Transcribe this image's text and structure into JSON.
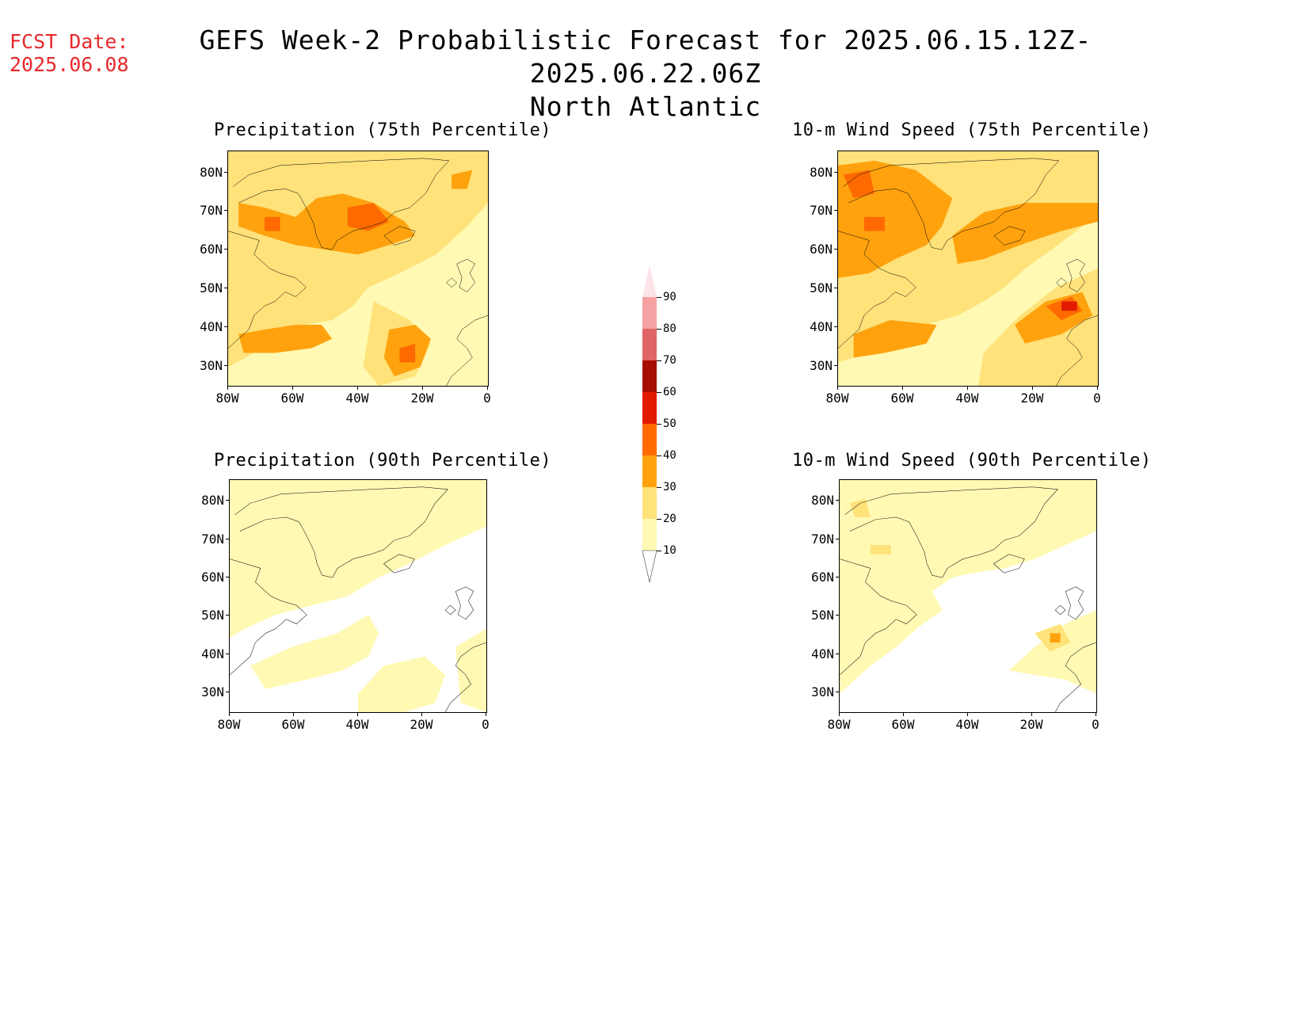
{
  "forecast_date_label": "FCST Date:",
  "forecast_date": "2025.06.08",
  "title": "GEFS Week-2 Probabilistic Forecast for 2025.06.15.12Z-2025.06.22.06Z",
  "subtitle": "North Atlantic",
  "panels": [
    {
      "id": "precip75",
      "title": "Precipitation (75th Percentile)"
    },
    {
      "id": "wind75",
      "title": "10-m Wind Speed (75th Percentile)"
    },
    {
      "id": "precip90",
      "title": "Precipitation (90th Percentile)"
    },
    {
      "id": "wind90",
      "title": "10-m Wind Speed (90th Percentile)"
    }
  ],
  "axes": {
    "lat_ticks": [
      "80N",
      "70N",
      "60N",
      "50N",
      "40N",
      "30N"
    ],
    "lon_ticks": [
      "80W",
      "60W",
      "40W",
      "20W",
      "0"
    ]
  },
  "colorbar": {
    "levels": [
      "10",
      "20",
      "30",
      "40",
      "50",
      "60",
      "70",
      "80",
      "90"
    ],
    "colors": [
      "#fff9b3",
      "#ffe27a",
      "#ffa20e",
      "#ff6a00",
      "#e21b00",
      "#a50e00",
      "#e06666",
      "#f4a2a2",
      "#fde4e8"
    ]
  }
}
